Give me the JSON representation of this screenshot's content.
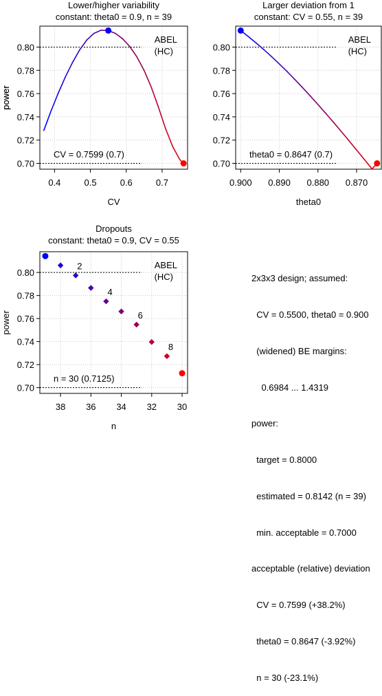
{
  "chart_data": [
    {
      "type": "line",
      "title": "Lower/higher variability",
      "subtitle": "constant: theta0 = 0.9, n = 39",
      "xlabel": "CV",
      "ylabel": "power",
      "xlim": [
        0.359,
        0.771
      ],
      "ylim": [
        0.695,
        0.818
      ],
      "x_ticks": [
        0.4,
        0.5,
        0.6,
        0.7
      ],
      "x_tick_labels": [
        "0.4",
        "0.5",
        "0.6",
        "0.7"
      ],
      "y_ticks": [
        0.7,
        0.72,
        0.74,
        0.76,
        0.78,
        0.8
      ],
      "y_tick_labels": [
        "0.70",
        "0.72",
        "0.74",
        "0.76",
        "0.78",
        "0.80"
      ],
      "grid": true,
      "series": [
        {
          "x": [
            0.37,
            0.39,
            0.41,
            0.43,
            0.45,
            0.47,
            0.49,
            0.51,
            0.53,
            0.55,
            0.57,
            0.59,
            0.61,
            0.63,
            0.65,
            0.67,
            0.69,
            0.71,
            0.73,
            0.75,
            0.76
          ],
          "y": [
            0.7283,
            0.7449,
            0.7602,
            0.7742,
            0.7867,
            0.7976,
            0.8061,
            0.8118,
            0.8145,
            0.8142,
            0.8117,
            0.8071,
            0.8004,
            0.7914,
            0.7798,
            0.7653,
            0.7481,
            0.7296,
            0.7141,
            0.703,
            0.7
          ]
        }
      ],
      "highlight_points": [
        {
          "x": 0.55,
          "y": 0.8142,
          "color": "#0000ff"
        },
        {
          "x": 0.7599,
          "y": 0.7,
          "color": "#ff0000"
        }
      ],
      "hlines": [
        0.8,
        0.7
      ],
      "method_label": [
        "ABEL",
        "(HC)"
      ],
      "annotation": "CV = 0.7599 (0.7)"
    },
    {
      "type": "line",
      "title": "Larger deviation from 1",
      "subtitle": "constant: CV = 0.55, n = 39",
      "xlabel": "theta0",
      "ylabel": "power",
      "xlim": [
        0.9013,
        0.8636
      ],
      "ylim": [
        0.695,
        0.818
      ],
      "x_ticks": [
        0.9,
        0.89,
        0.88,
        0.87
      ],
      "x_tick_labels": [
        "0.900",
        "0.890",
        "0.880",
        "0.870"
      ],
      "y_ticks": [
        0.7,
        0.72,
        0.74,
        0.76,
        0.78,
        0.8
      ],
      "y_tick_labels": [
        "0.70",
        "0.72",
        "0.74",
        "0.76",
        "0.78",
        "0.80"
      ],
      "grid": true,
      "series": [
        {
          "x": [
            0.9,
            0.898,
            0.896,
            0.894,
            0.892,
            0.89,
            0.888,
            0.886,
            0.884,
            0.882,
            0.88,
            0.878,
            0.876,
            0.874,
            0.872,
            0.87,
            0.868,
            0.866,
            0.8647
          ],
          "y": [
            0.8142,
            0.809,
            0.8035,
            0.7978,
            0.7918,
            0.7855,
            0.779,
            0.7722,
            0.7652,
            0.758,
            0.7506,
            0.7431,
            0.7354,
            0.7275,
            0.7196,
            0.7115,
            0.7034,
            0.6952,
            0.7
          ]
        }
      ],
      "highlight_points": [
        {
          "x": 0.9,
          "y": 0.8142,
          "color": "#0000ff"
        },
        {
          "x": 0.8647,
          "y": 0.7,
          "color": "#ff0000"
        }
      ],
      "hlines": [
        0.8,
        0.7
      ],
      "method_label": [
        "ABEL",
        "(HC)"
      ],
      "annotation": "theta0 = 0.8647 (0.7)"
    },
    {
      "type": "scatter",
      "title": "Dropouts",
      "subtitle": "constant: theta0 = 0.9, CV = 0.55",
      "xlabel": "n",
      "ylabel": "power",
      "xlim": [
        39.36,
        29.64
      ],
      "ylim": [
        0.695,
        0.818
      ],
      "x_ticks": [
        38,
        36,
        34,
        32,
        30
      ],
      "x_tick_labels": [
        "38",
        "36",
        "34",
        "32",
        "30"
      ],
      "y_ticks": [
        0.7,
        0.72,
        0.74,
        0.76,
        0.78,
        0.8
      ],
      "y_tick_labels": [
        "0.70",
        "0.72",
        "0.74",
        "0.76",
        "0.78",
        "0.80"
      ],
      "grid": true,
      "points": [
        {
          "x": 39,
          "y": 0.8142,
          "label": ""
        },
        {
          "x": 38,
          "y": 0.8061,
          "label": ""
        },
        {
          "x": 37,
          "y": 0.7974,
          "label": "2"
        },
        {
          "x": 36,
          "y": 0.7866,
          "label": ""
        },
        {
          "x": 35,
          "y": 0.7749,
          "label": "4"
        },
        {
          "x": 34,
          "y": 0.7661,
          "label": ""
        },
        {
          "x": 33,
          "y": 0.7547,
          "label": "6"
        },
        {
          "x": 32,
          "y": 0.7396,
          "label": ""
        },
        {
          "x": 31,
          "y": 0.7273,
          "label": "8"
        },
        {
          "x": 30,
          "y": 0.7125,
          "label": ""
        }
      ],
      "hlines": [
        0.8,
        0.7
      ],
      "method_label": [
        "ABEL",
        "(HC)"
      ],
      "annotation": "n = 30 (0.7125)"
    }
  ],
  "info_text": [
    "2x3x3 design; assumed:",
    "  CV = 0.5500, theta0 = 0.900",
    "  (widened) BE margins:",
    "    0.6984 ... 1.4319",
    "power:",
    "  target = 0.8000",
    "  estimated = 0.8142 (n = 39)",
    "  min. acceptable = 0.7000",
    "acceptable (relative) deviation",
    "  CV = 0.7599 (+38.2%)",
    "  theta0 = 0.8647 (-3.92%)",
    "  n = 30 (-23.1%)"
  ]
}
